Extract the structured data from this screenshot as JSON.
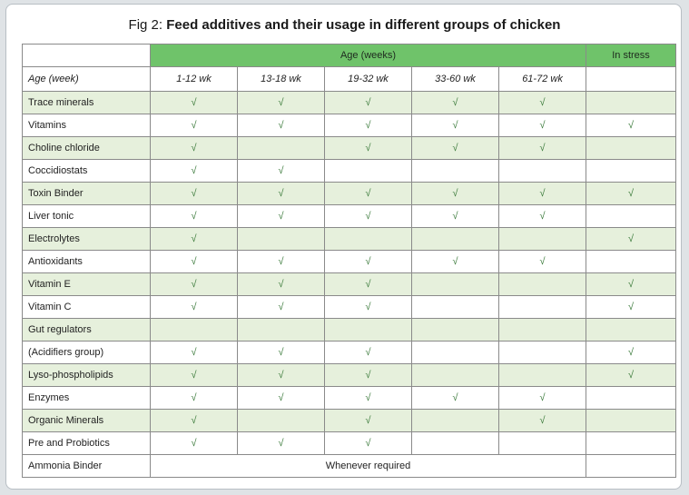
{
  "title_prefix": "Fig 2:",
  "title_text": "Feed additives and their usage in different groups of chicken",
  "header": {
    "age_group_label": "Age (weeks)",
    "stress_label": "In stress",
    "first_col_label": "Age (week)",
    "columns": [
      "1-12 wk",
      "13-18 wk",
      "19-32 wk",
      "33-60 wk",
      "61-72 wk"
    ]
  },
  "check_symbol": "√",
  "rows": [
    {
      "label": "Trace minerals",
      "cells": [
        true,
        true,
        true,
        true,
        true,
        false
      ]
    },
    {
      "label": "Vitamins",
      "cells": [
        true,
        true,
        true,
        true,
        true,
        true
      ]
    },
    {
      "label": "Choline chloride",
      "cells": [
        true,
        false,
        true,
        true,
        true,
        false
      ]
    },
    {
      "label": "Coccidiostats",
      "cells": [
        true,
        true,
        false,
        false,
        false,
        false
      ]
    },
    {
      "label": "Toxin Binder",
      "cells": [
        true,
        true,
        true,
        true,
        true,
        true
      ]
    },
    {
      "label": "Liver tonic",
      "cells": [
        true,
        true,
        true,
        true,
        true,
        false
      ]
    },
    {
      "label": "Electrolytes",
      "cells": [
        true,
        false,
        false,
        false,
        false,
        true
      ]
    },
    {
      "label": "Antioxidants",
      "cells": [
        true,
        true,
        true,
        true,
        true,
        false
      ]
    },
    {
      "label": "Vitamin E",
      "cells": [
        true,
        true,
        true,
        false,
        false,
        true
      ]
    },
    {
      "label": "Vitamin C",
      "cells": [
        true,
        true,
        true,
        false,
        false,
        true
      ]
    },
    {
      "label": "Gut regulators",
      "cells": [
        false,
        false,
        false,
        false,
        false,
        false
      ]
    },
    {
      "label": "(Acidifiers group)",
      "cells": [
        true,
        true,
        true,
        false,
        false,
        true
      ]
    },
    {
      "label": "Lyso-phospholipids",
      "cells": [
        true,
        true,
        true,
        false,
        false,
        true
      ]
    },
    {
      "label": "Enzymes",
      "cells": [
        true,
        true,
        true,
        true,
        true,
        false
      ]
    },
    {
      "label": "Organic Minerals",
      "cells": [
        true,
        false,
        true,
        false,
        true,
        false
      ]
    },
    {
      "label": "Pre and Probiotics",
      "cells": [
        true,
        true,
        true,
        false,
        false,
        false
      ]
    }
  ],
  "last_row": {
    "label": "Ammonia Binder",
    "note": "Whenever required"
  },
  "colors": {
    "header_green": "#6fc36a",
    "row_tint": "#e6f0dc",
    "check": "#3a7a3a"
  }
}
